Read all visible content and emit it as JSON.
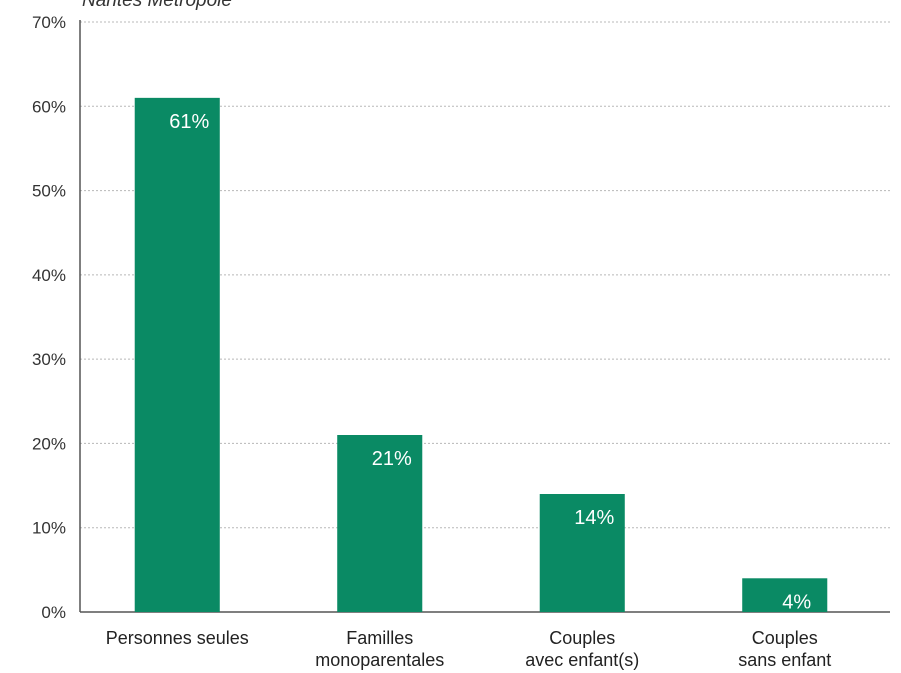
{
  "chart_data": {
    "type": "bar",
    "title": "Nantes Métropole",
    "categories": [
      [
        "Personnes seules"
      ],
      [
        "Familles",
        "monoparentales"
      ],
      [
        "Couples",
        "avec enfant(s)"
      ],
      [
        "Couples",
        "sans enfant"
      ]
    ],
    "values": [
      61,
      21,
      14,
      4
    ],
    "value_labels": [
      "61%",
      "21%",
      "14%",
      "4%"
    ],
    "yticks": [
      "0%",
      "10%",
      "20%",
      "30%",
      "40%",
      "50%",
      "60%",
      "70%"
    ],
    "ylim": [
      0,
      70
    ],
    "grid": true,
    "bar_color": "#0a8a64"
  }
}
